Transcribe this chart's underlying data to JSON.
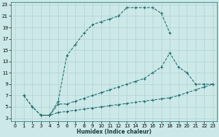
{
  "xlabel": "Humidex (Indice chaleur)",
  "bg_color": "#cce8e8",
  "grid_color": "#b0d0d0",
  "line_color": "#1a6b6b",
  "xlim": [
    -0.5,
    23.5
  ],
  "ylim": [
    2.5,
    23.5
  ],
  "xticks": [
    0,
    1,
    2,
    3,
    4,
    5,
    6,
    7,
    8,
    9,
    10,
    11,
    12,
    13,
    14,
    15,
    16,
    17,
    18,
    19,
    20,
    21,
    22,
    23
  ],
  "yticks": [
    3,
    5,
    7,
    9,
    11,
    13,
    15,
    17,
    19,
    21,
    23
  ],
  "line1_x": [
    1,
    2,
    3,
    4,
    5,
    6,
    7,
    8,
    9,
    10,
    11,
    12,
    13,
    14,
    15,
    16,
    17,
    18
  ],
  "line1_y": [
    7,
    5,
    3.5,
    3.5,
    6,
    14,
    16,
    18,
    19.5,
    20,
    20.5,
    21,
    22.5,
    22.5,
    22.5,
    22.5,
    21.5,
    18
  ],
  "line2_x": [
    1,
    2,
    3,
    4,
    5,
    6,
    7,
    8,
    9,
    10,
    11,
    12,
    13,
    14,
    15,
    16,
    17,
    18,
    19,
    20,
    21,
    22,
    23
  ],
  "line2_y": [
    7,
    5,
    3.5,
    3.5,
    4.0,
    4.2,
    4.4,
    4.6,
    4.8,
    5.0,
    5.2,
    5.4,
    5.6,
    5.8,
    6.0,
    6.2,
    6.4,
    6.6,
    7.0,
    7.5,
    8.0,
    8.5,
    9.0
  ],
  "line3_x": [
    3,
    4,
    5,
    6,
    7,
    8,
    9,
    10,
    11,
    12,
    13,
    14,
    15,
    16,
    17,
    18,
    19,
    20,
    21,
    22,
    23
  ],
  "line3_y": [
    3.5,
    3.5,
    5.5,
    5.5,
    6.0,
    6.5,
    7.0,
    7.5,
    8.0,
    8.5,
    9.0,
    9.5,
    10.0,
    11.0,
    12.0,
    14.5,
    12.0,
    11.0,
    9.0,
    9.0,
    9.0
  ]
}
